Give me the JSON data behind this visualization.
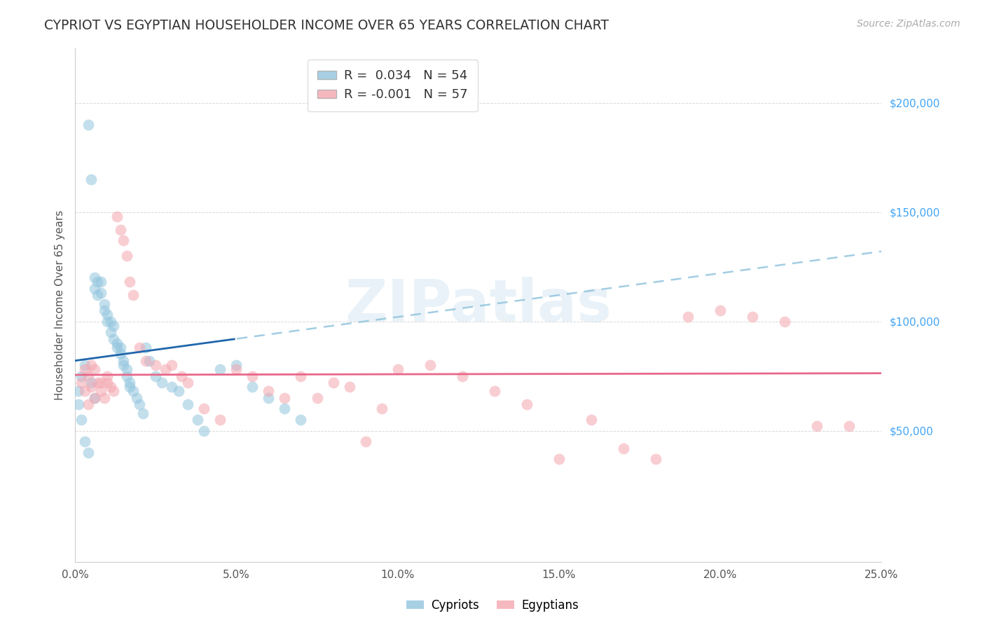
{
  "title": "CYPRIOT VS EGYPTIAN HOUSEHOLDER INCOME OVER 65 YEARS CORRELATION CHART",
  "source": "Source: ZipAtlas.com",
  "ylabel": "Householder Income Over 65 years",
  "xlim": [
    0.0,
    0.25
  ],
  "ylim": [
    -10000,
    225000
  ],
  "cypriot_R": "0.034",
  "cypriot_N": "54",
  "egyptian_R": "-0.001",
  "egyptian_N": "57",
  "cypriot_color": "#92c5de",
  "egyptian_color": "#f4a6b0",
  "cypriot_line_solid_color": "#2166ac",
  "cypriot_line_dash_color": "#92c5de",
  "egyptian_line_color": "#e8688a",
  "background_color": "#ffffff",
  "grid_color": "#d0d0d0",
  "watermark": "ZIPatlas",
  "cyp_x": [
    0.002,
    0.003,
    0.004,
    0.005,
    0.006,
    0.006,
    0.007,
    0.007,
    0.008,
    0.008,
    0.009,
    0.009,
    0.01,
    0.01,
    0.011,
    0.011,
    0.012,
    0.012,
    0.013,
    0.013,
    0.014,
    0.014,
    0.015,
    0.015,
    0.016,
    0.016,
    0.017,
    0.017,
    0.018,
    0.019,
    0.02,
    0.021,
    0.022,
    0.023,
    0.025,
    0.027,
    0.03,
    0.032,
    0.035,
    0.038,
    0.04,
    0.045,
    0.05,
    0.055,
    0.06,
    0.065,
    0.07,
    0.001,
    0.001,
    0.002,
    0.003,
    0.004,
    0.005,
    0.006
  ],
  "cyp_y": [
    75000,
    80000,
    190000,
    165000,
    120000,
    115000,
    118000,
    112000,
    118000,
    113000,
    108000,
    105000,
    103000,
    100000,
    100000,
    95000,
    98000,
    92000,
    90000,
    88000,
    88000,
    85000,
    82000,
    80000,
    78000,
    75000,
    72000,
    70000,
    68000,
    65000,
    62000,
    58000,
    88000,
    82000,
    75000,
    72000,
    70000,
    68000,
    62000,
    55000,
    50000,
    78000,
    80000,
    70000,
    65000,
    60000,
    55000,
    68000,
    62000,
    55000,
    45000,
    40000,
    72000,
    65000
  ],
  "egy_x": [
    0.002,
    0.003,
    0.004,
    0.005,
    0.006,
    0.007,
    0.008,
    0.009,
    0.01,
    0.011,
    0.012,
    0.013,
    0.014,
    0.015,
    0.016,
    0.017,
    0.018,
    0.02,
    0.022,
    0.025,
    0.028,
    0.03,
    0.033,
    0.035,
    0.04,
    0.045,
    0.05,
    0.055,
    0.06,
    0.065,
    0.07,
    0.075,
    0.08,
    0.085,
    0.09,
    0.095,
    0.1,
    0.11,
    0.12,
    0.13,
    0.14,
    0.15,
    0.16,
    0.17,
    0.18,
    0.19,
    0.2,
    0.21,
    0.22,
    0.23,
    0.24,
    0.003,
    0.004,
    0.005,
    0.006,
    0.008,
    0.01
  ],
  "egy_y": [
    72000,
    78000,
    75000,
    80000,
    78000,
    72000,
    68000,
    65000,
    72000,
    70000,
    68000,
    148000,
    142000,
    137000,
    130000,
    118000,
    112000,
    88000,
    82000,
    80000,
    78000,
    80000,
    75000,
    72000,
    60000,
    55000,
    78000,
    75000,
    68000,
    65000,
    75000,
    65000,
    72000,
    70000,
    45000,
    60000,
    78000,
    80000,
    75000,
    68000,
    62000,
    37000,
    55000,
    42000,
    37000,
    102000,
    105000,
    102000,
    100000,
    52000,
    52000,
    68000,
    62000,
    70000,
    65000,
    72000,
    75000
  ]
}
